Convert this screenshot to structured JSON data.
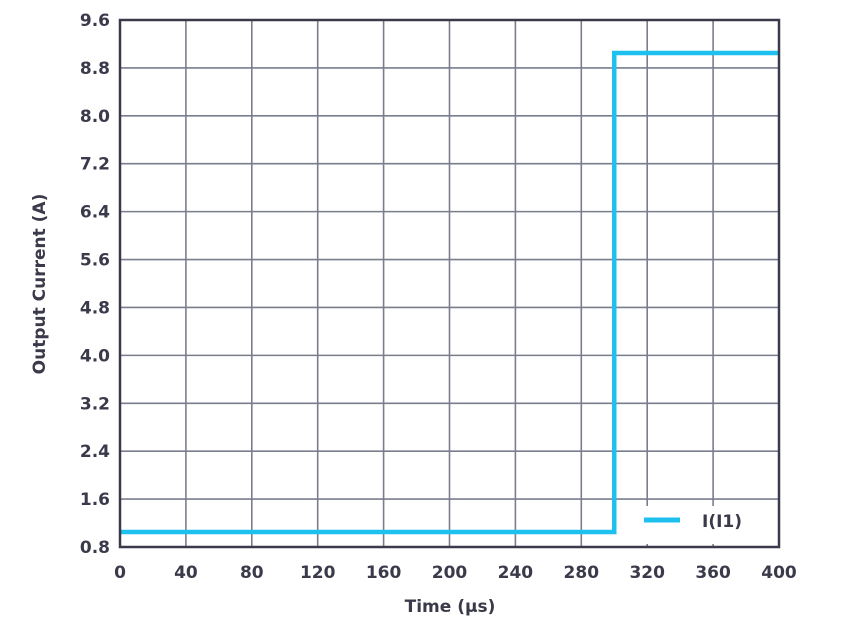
{
  "chart_data": {
    "type": "line",
    "title": "",
    "xlabel": "Time (µs)",
    "ylabel": "Output Current (A)",
    "xlim": [
      0,
      400
    ],
    "ylim": [
      0.8,
      9.6
    ],
    "xticks": [
      "0",
      "40",
      "80",
      "120",
      "160",
      "200",
      "240",
      "280",
      "320",
      "360",
      "400"
    ],
    "yticks": [
      "0.8",
      "1.6",
      "2.4",
      "3.2",
      "4.0",
      "4.8",
      "5.6",
      "6.4",
      "7.2",
      "8.0",
      "8.8",
      "9.6"
    ],
    "grid": true,
    "legend_placement": "bottom-right",
    "series": [
      {
        "name": "I(I1)",
        "color": "#1ec0f0",
        "x": [
          0,
          300,
          300,
          400
        ],
        "y": [
          1.05,
          1.05,
          9.05,
          9.05
        ]
      }
    ]
  }
}
